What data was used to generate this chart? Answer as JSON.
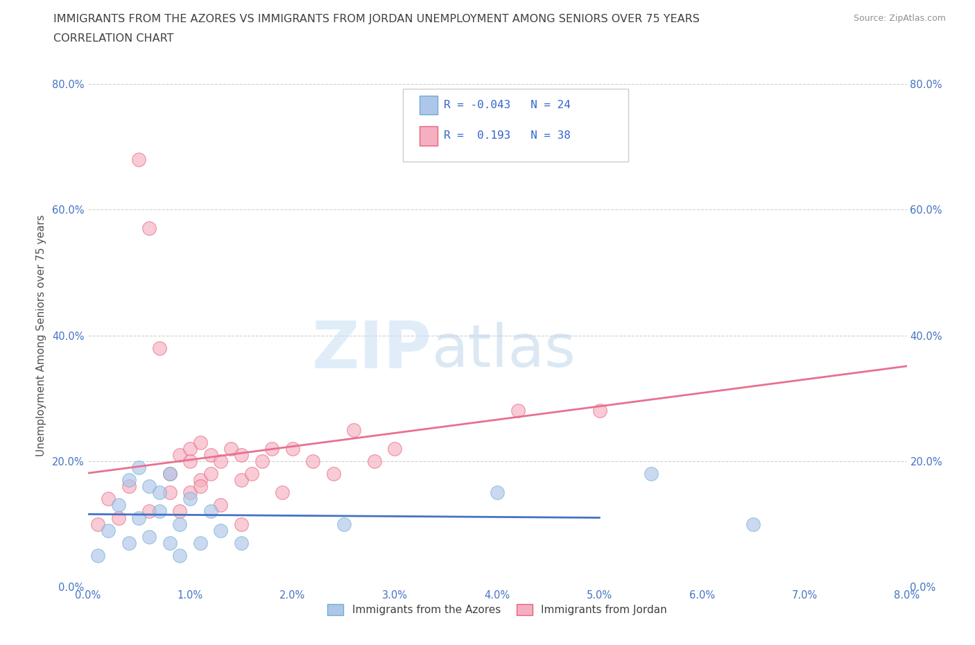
{
  "title_line1": "IMMIGRANTS FROM THE AZORES VS IMMIGRANTS FROM JORDAN UNEMPLOYMENT AMONG SENIORS OVER 75 YEARS",
  "title_line2": "CORRELATION CHART",
  "source_text": "Source: ZipAtlas.com",
  "ylabel": "Unemployment Among Seniors over 75 years",
  "xlim": [
    0.0,
    0.08
  ],
  "ylim": [
    0.0,
    0.8
  ],
  "xticks": [
    0.0,
    0.01,
    0.02,
    0.03,
    0.04,
    0.05,
    0.06,
    0.07,
    0.08
  ],
  "yticks": [
    0.0,
    0.2,
    0.4,
    0.6,
    0.8
  ],
  "ytick_labels": [
    "0.0%",
    "20.0%",
    "40.0%",
    "60.0%",
    "80.0%"
  ],
  "xtick_labels": [
    "0.0%",
    "1.0%",
    "2.0%",
    "3.0%",
    "4.0%",
    "5.0%",
    "6.0%",
    "7.0%",
    "8.0%"
  ],
  "azores_R": -0.043,
  "azores_N": 24,
  "jordan_R": 0.193,
  "jordan_N": 38,
  "azores_fill": "#aec6e8",
  "jordan_fill": "#f5afc0",
  "azores_edge": "#6baed6",
  "jordan_edge": "#e8607a",
  "azores_line_color": "#4472c4",
  "jordan_line_color": "#e87090",
  "azores_line_dash": [
    0.05,
    0.08
  ],
  "azores_x": [
    0.001,
    0.002,
    0.003,
    0.004,
    0.004,
    0.005,
    0.005,
    0.006,
    0.006,
    0.007,
    0.007,
    0.008,
    0.008,
    0.009,
    0.009,
    0.01,
    0.011,
    0.012,
    0.013,
    0.015,
    0.04,
    0.055,
    0.065,
    0.025
  ],
  "azores_y": [
    0.05,
    0.09,
    0.13,
    0.07,
    0.17,
    0.11,
    0.19,
    0.08,
    0.16,
    0.12,
    0.15,
    0.07,
    0.18,
    0.1,
    0.05,
    0.14,
    0.07,
    0.12,
    0.09,
    0.07,
    0.15,
    0.18,
    0.1,
    0.1
  ],
  "jordan_x": [
    0.008,
    0.009,
    0.01,
    0.01,
    0.011,
    0.011,
    0.012,
    0.012,
    0.013,
    0.014,
    0.015,
    0.015,
    0.016,
    0.017,
    0.018,
    0.019,
    0.02,
    0.022,
    0.024,
    0.026,
    0.028,
    0.03,
    0.042,
    0.05,
    0.001,
    0.002,
    0.003,
    0.004,
    0.005,
    0.006,
    0.006,
    0.007,
    0.008,
    0.009,
    0.01,
    0.011,
    0.013,
    0.015
  ],
  "jordan_y": [
    0.18,
    0.21,
    0.15,
    0.22,
    0.17,
    0.23,
    0.18,
    0.21,
    0.2,
    0.22,
    0.17,
    0.21,
    0.18,
    0.2,
    0.22,
    0.15,
    0.22,
    0.2,
    0.18,
    0.25,
    0.2,
    0.22,
    0.28,
    0.28,
    0.1,
    0.14,
    0.11,
    0.16,
    0.68,
    0.57,
    0.12,
    0.38,
    0.15,
    0.12,
    0.2,
    0.16,
    0.13,
    0.1
  ],
  "watermark_zip": "ZIP",
  "watermark_atlas": "atlas",
  "background_color": "#ffffff",
  "grid_color": "#cccccc",
  "title_color": "#404040",
  "tick_color": "#4472c4",
  "legend_label_azores": "Immigrants from the Azores",
  "legend_label_jordan": "Immigrants from Jordan"
}
